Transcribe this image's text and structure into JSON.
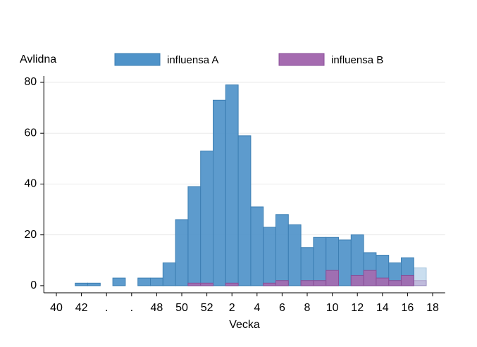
{
  "chart_data": {
    "type": "bar",
    "y_label": "Avlidna",
    "x_label": "Vecka",
    "categories": [
      "40",
      null,
      "42",
      null,
      ".",
      null,
      ".",
      null,
      "48",
      null,
      "50",
      null,
      "52",
      null,
      "2",
      null,
      "4",
      null,
      "6",
      null,
      "8",
      null,
      "10",
      null,
      "12",
      null,
      "14",
      null,
      "16",
      null,
      "18"
    ],
    "series": [
      {
        "name": "influensa A",
        "color": "#4f93c9",
        "edge": "#3d7fb3",
        "values": [
          0,
          0,
          1,
          1,
          0,
          3,
          0,
          3,
          3,
          9,
          26,
          39,
          53,
          73,
          79,
          59,
          31,
          23,
          28,
          24,
          15,
          19,
          19,
          18,
          20,
          13,
          12,
          9,
          11,
          7,
          0
        ]
      },
      {
        "name": "influensa B",
        "color": "#a56bb0",
        "edge": "#8a4f98",
        "values": [
          0,
          0,
          0,
          0,
          0,
          0,
          0,
          0,
          0,
          0,
          0,
          1,
          1,
          0,
          1,
          0,
          0,
          1,
          2,
          0,
          2,
          2,
          6,
          0,
          4,
          6,
          3,
          2,
          4,
          2,
          0
        ]
      }
    ],
    "faded_from": 29,
    "ylim": [
      -2.8,
      82.5
    ],
    "yticks": [
      0,
      20,
      40,
      60,
      80
    ],
    "grid": true
  }
}
